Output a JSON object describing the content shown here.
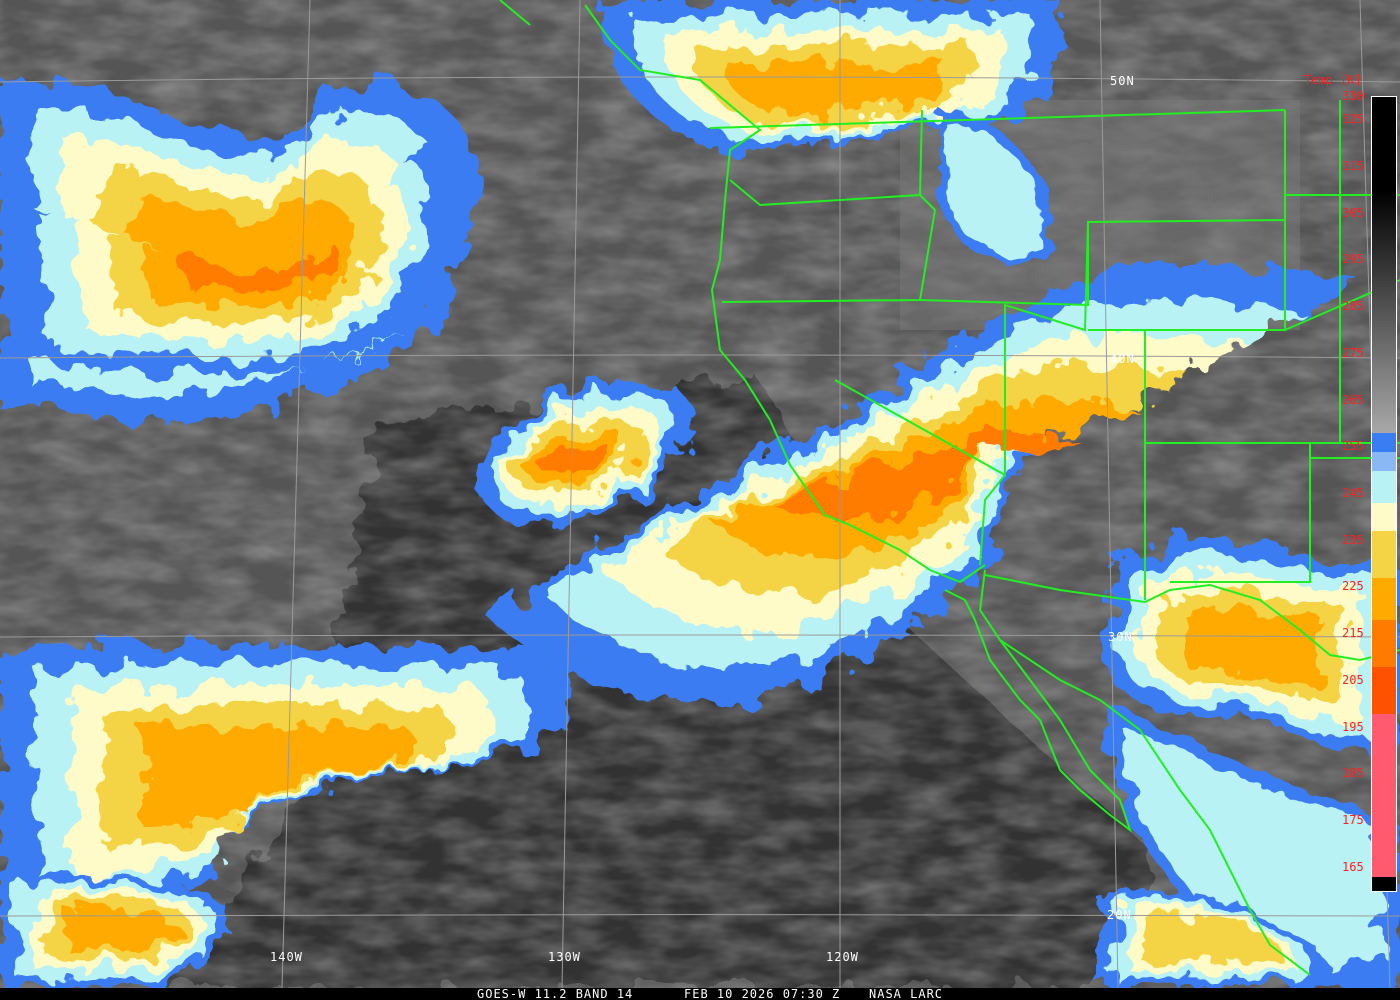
{
  "caption": {
    "satellite": "GOES-W 11.2 BAND 14",
    "datetime": "FEB 10 2026 07:30 Z",
    "source": "NASA LARC"
  },
  "grid_labels": {
    "lat": [
      "50N",
      "40N",
      "30N",
      "20N"
    ],
    "lon": [
      "140W",
      "130W",
      "120W"
    ]
  },
  "colorbar": {
    "title": "Temp [K]",
    "ticks": [
      "330",
      "325",
      "315",
      "305",
      "295",
      "285",
      "275",
      "265",
      "255",
      "245",
      "235",
      "225",
      "215",
      "205",
      "195",
      "185",
      "175",
      "165"
    ],
    "bins": [
      {
        "from": 330,
        "to": 310,
        "color": "#000000"
      },
      {
        "from": 310,
        "to": 258,
        "color": "gradient-black-to-gray"
      },
      {
        "from": 258,
        "to": 254,
        "color": "#3a7cf2"
      },
      {
        "from": 254,
        "to": 250,
        "color": "#8ab8f5"
      },
      {
        "from": 250,
        "to": 243,
        "color": "#b8f2f5"
      },
      {
        "from": 243,
        "to": 237,
        "color": "#fffbc8"
      },
      {
        "from": 237,
        "to": 227,
        "color": "#f4d444"
      },
      {
        "from": 227,
        "to": 218,
        "color": "#ffaa00"
      },
      {
        "from": 218,
        "to": 208,
        "color": "#ff7b00"
      },
      {
        "from": 208,
        "to": 198,
        "color": "#ff5200"
      },
      {
        "from": 198,
        "to": 163,
        "color": "#ff5a6e"
      },
      {
        "from": 163,
        "to": 160,
        "color": "#000000"
      }
    ]
  },
  "colors": {
    "coastline": "#22ee22",
    "grid": "#aaaaaa",
    "labels": "#ffffff",
    "colorbar_text": "#ff2020"
  }
}
